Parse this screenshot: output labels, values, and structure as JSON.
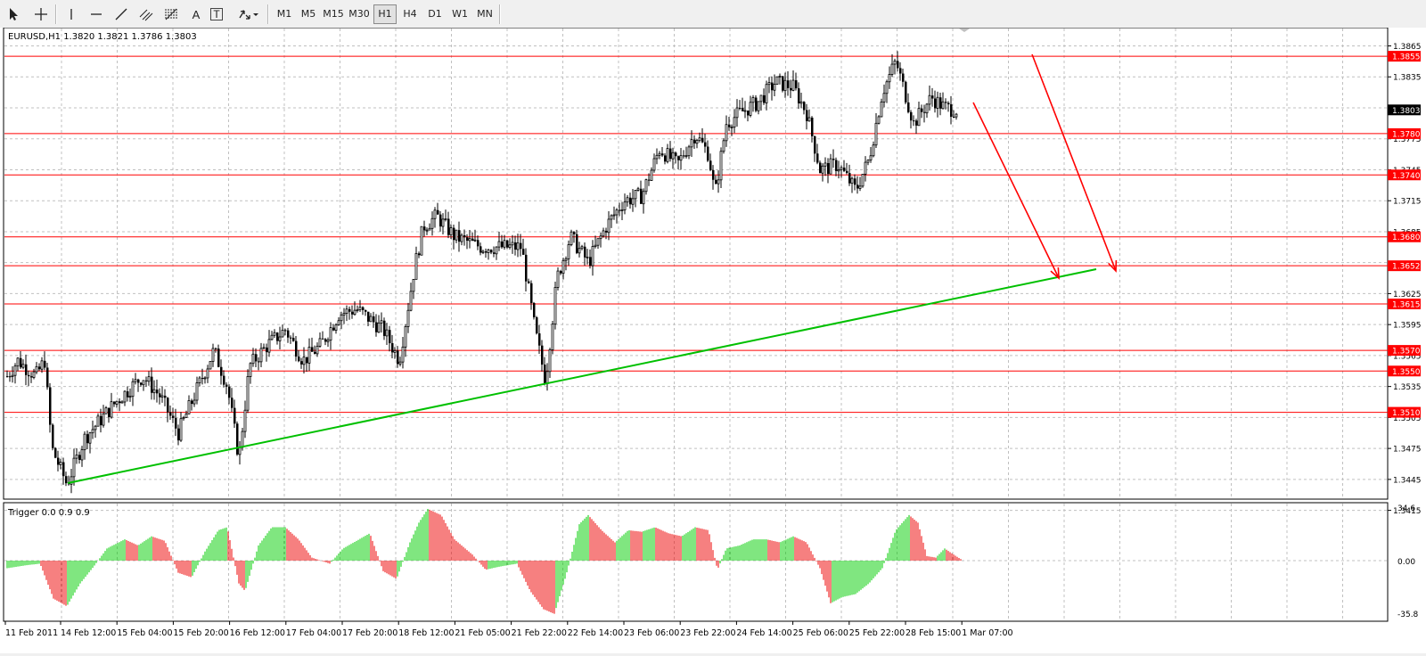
{
  "toolbar": {
    "tools": [
      {
        "name": "cursor-arrow-icon"
      },
      {
        "name": "crosshair-icon"
      },
      {
        "name": "vertical-line-icon"
      },
      {
        "name": "horizontal-line-icon"
      },
      {
        "name": "trendline-icon"
      },
      {
        "name": "equidistant-channel-icon"
      },
      {
        "name": "fibonacci-retracement-icon"
      },
      {
        "name": "text-label-icon",
        "glyph": "A"
      },
      {
        "name": "text-box-icon",
        "glyph": "T"
      },
      {
        "name": "arrows-menu-icon"
      }
    ],
    "timeframes": [
      "M1",
      "M5",
      "M15",
      "M30",
      "H1",
      "H4",
      "D1",
      "W1",
      "MN"
    ],
    "active_timeframe": "H1"
  },
  "chart": {
    "header": "EURUSD,H1  1.3820 1.3821 1.3786 1.3803",
    "current_price_label": "1.3803",
    "ohlc": {
      "symbol": "EURUSD",
      "period": "H1",
      "open": 1.382,
      "high": 1.3821,
      "low": 1.3786,
      "close": 1.3803
    }
  },
  "indicator": {
    "header": "Trigger 0.0 0.9 0.9",
    "scale_labels": [
      "34.6",
      "0.00",
      "-35.8"
    ]
  },
  "time_axis": [
    "11 Feb 2011",
    "14 Feb 12:00",
    "15 Feb 04:00",
    "15 Feb 20:00",
    "16 Feb 12:00",
    "17 Feb 04:00",
    "17 Feb 20:00",
    "18 Feb 12:00",
    "21 Feb 05:00",
    "21 Feb 22:00",
    "22 Feb 14:00",
    "23 Feb 06:00",
    "23 Feb 22:00",
    "24 Feb 14:00",
    "25 Feb 06:00",
    "25 Feb 22:00",
    "28 Feb 15:00",
    "1 Mar 07:00"
  ],
  "price_axis": [
    "1.3865",
    "1.3835",
    "1.3775",
    "1.3745",
    "1.3715",
    "1.3685",
    "1.3625",
    "1.3595",
    "1.3565",
    "1.3535",
    "1.3505",
    "1.3475",
    "1.3445",
    "1.3415"
  ],
  "levels": [
    {
      "label": "1.3855",
      "value": 1.3855
    },
    {
      "label": "1.3780",
      "value": 1.378
    },
    {
      "label": "1.3740",
      "value": 1.374
    },
    {
      "label": "1.3680",
      "value": 1.368
    },
    {
      "label": "1.3652",
      "value": 1.3652
    },
    {
      "label": "1.3615",
      "value": 1.3615
    },
    {
      "label": "1.3570",
      "value": 1.357
    },
    {
      "label": "1.3550",
      "value": 1.355
    },
    {
      "label": "1.3510",
      "value": 1.351
    }
  ],
  "colors": {
    "level_line": "#ff0000",
    "level_badge": "#ff0000",
    "trendline": "#00c000",
    "arrow": "#ff0000",
    "candle": "#000000",
    "grid": "#c0c0c0",
    "hist_up": "#00cc00",
    "hist_down": "#ee0000",
    "current_badge": "#000000"
  }
}
